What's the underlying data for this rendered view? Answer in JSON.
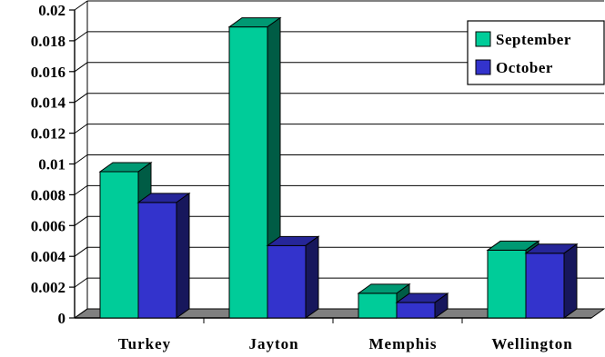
{
  "chart_data": {
    "type": "bar",
    "title": "",
    "xlabel": "",
    "ylabel": "",
    "categories": [
      "Turkey",
      "Jayton",
      "Memphis",
      "Wellington"
    ],
    "series": [
      {
        "name": "September",
        "values": [
          0.0095,
          0.0189,
          0.0016,
          0.0044
        ],
        "color": "#00CC99"
      },
      {
        "name": "October",
        "values": [
          0.0075,
          0.0047,
          0.001,
          0.0042
        ],
        "color": "#3333CC"
      }
    ],
    "ylim": [
      0,
      0.02
    ],
    "yticks": [
      "0",
      "0.002",
      "0.004",
      "0.006",
      "0.008",
      "0.01",
      "0.012",
      "0.014",
      "0.016",
      "0.018",
      "0.02"
    ],
    "grid": true,
    "legend_position": "top-right",
    "style": "3d-clustered-column"
  }
}
